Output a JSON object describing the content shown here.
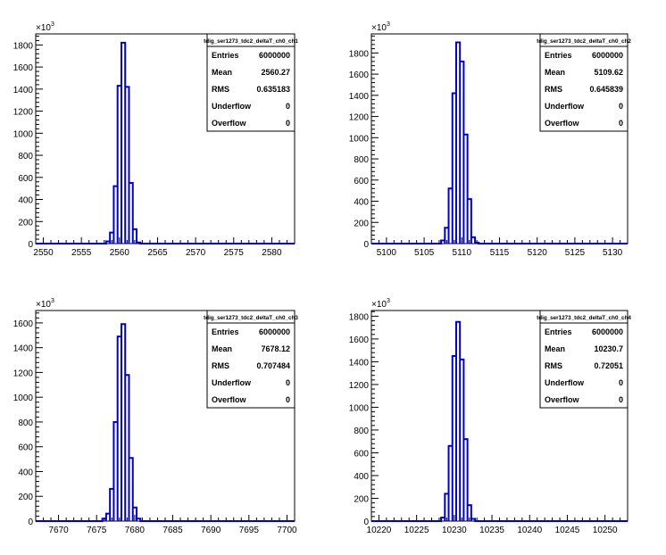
{
  "chart_data": [
    {
      "type": "histogram",
      "title": "tdig_ser1273_tdc2_deltaT_ch0_ch1",
      "y_exponent": "3",
      "xlim": [
        2549,
        2583
      ],
      "ylim": [
        0,
        1.9
      ],
      "xticks": [
        2550,
        2555,
        2560,
        2565,
        2570,
        2575,
        2580
      ],
      "yticks": [
        0,
        200,
        400,
        600,
        800,
        1000,
        1200,
        1400,
        1600,
        1800
      ],
      "bins": [
        {
          "x": 2558.5,
          "y": 0.02
        },
        {
          "x": 2559.0,
          "y": 0.1
        },
        {
          "x": 2559.5,
          "y": 0.52
        },
        {
          "x": 2560.0,
          "y": 1.43
        },
        {
          "x": 2560.5,
          "y": 1.82
        },
        {
          "x": 2561.0,
          "y": 1.42
        },
        {
          "x": 2561.5,
          "y": 0.55
        },
        {
          "x": 2562.0,
          "y": 0.13
        },
        {
          "x": 2562.5,
          "y": 0.01
        }
      ],
      "stats": [
        {
          "label": "Entries",
          "value": "6000000"
        },
        {
          "label": "Mean",
          "value": "2560.27"
        },
        {
          "label": "RMS",
          "value": "0.635183"
        },
        {
          "label": "Underflow",
          "value": "0"
        },
        {
          "label": "Overflow",
          "value": "0"
        }
      ]
    },
    {
      "type": "histogram",
      "title": "tdig_ser1273_tdc2_deltaT_ch0_ch2",
      "y_exponent": "3",
      "xlim": [
        5098,
        5132
      ],
      "ylim": [
        0,
        1.98
      ],
      "xticks": [
        5100,
        5105,
        5110,
        5115,
        5120,
        5125,
        5130
      ],
      "yticks": [
        0,
        200,
        400,
        600,
        800,
        1000,
        1200,
        1400,
        1600,
        1800
      ],
      "bins": [
        {
          "x": 5107.5,
          "y": 0.03
        },
        {
          "x": 5108.0,
          "y": 0.15
        },
        {
          "x": 5108.5,
          "y": 0.52
        },
        {
          "x": 5109.0,
          "y": 1.42
        },
        {
          "x": 5109.5,
          "y": 1.9
        },
        {
          "x": 5110.0,
          "y": 1.72
        },
        {
          "x": 5110.5,
          "y": 1.03
        },
        {
          "x": 5111.0,
          "y": 0.42
        },
        {
          "x": 5111.5,
          "y": 0.06
        },
        {
          "x": 5112.0,
          "y": 0.01
        }
      ],
      "stats": [
        {
          "label": "Entries",
          "value": "6000000"
        },
        {
          "label": "Mean",
          "value": "5109.62"
        },
        {
          "label": "RMS",
          "value": "0.645839"
        },
        {
          "label": "Underflow",
          "value": "0"
        },
        {
          "label": "Overflow",
          "value": "0"
        }
      ]
    },
    {
      "type": "histogram",
      "title": "tdig_ser1273_tdc2_deltaT_ch0_ch3",
      "y_exponent": "3",
      "xlim": [
        7667,
        7701
      ],
      "ylim": [
        0,
        1.7
      ],
      "xticks": [
        7670,
        7675,
        7680,
        7685,
        7690,
        7695,
        7700
      ],
      "yticks": [
        0,
        200,
        400,
        600,
        800,
        1000,
        1200,
        1400,
        1600
      ],
      "bins": [
        {
          "x": 7676.0,
          "y": 0.02
        },
        {
          "x": 7676.5,
          "y": 0.06
        },
        {
          "x": 7677.0,
          "y": 0.26
        },
        {
          "x": 7677.5,
          "y": 0.8
        },
        {
          "x": 7678.0,
          "y": 1.49
        },
        {
          "x": 7678.5,
          "y": 1.59
        },
        {
          "x": 7679.0,
          "y": 1.18
        },
        {
          "x": 7679.5,
          "y": 0.51
        },
        {
          "x": 7680.0,
          "y": 0.11
        },
        {
          "x": 7680.5,
          "y": 0.02
        }
      ],
      "stats": [
        {
          "label": "Entries",
          "value": "6000000"
        },
        {
          "label": "Mean",
          "value": "7678.12"
        },
        {
          "label": "RMS",
          "value": "0.707484"
        },
        {
          "label": "Underflow",
          "value": "0"
        },
        {
          "label": "Overflow",
          "value": "0"
        }
      ]
    },
    {
      "type": "histogram",
      "title": "tdig_ser1273_tdc2_deltaT_ch0_ch4",
      "y_exponent": "3",
      "xlim": [
        10219,
        10253
      ],
      "ylim": [
        0,
        1.85
      ],
      "xticks": [
        10220,
        10225,
        10230,
        10235,
        10240,
        10245,
        10250
      ],
      "yticks": [
        0,
        200,
        400,
        600,
        800,
        1000,
        1200,
        1400,
        1600,
        1800
      ],
      "bins": [
        {
          "x": 10228.5,
          "y": 0.03
        },
        {
          "x": 10229.0,
          "y": 0.24
        },
        {
          "x": 10229.5,
          "y": 0.66
        },
        {
          "x": 10230.0,
          "y": 1.45
        },
        {
          "x": 10230.5,
          "y": 1.75
        },
        {
          "x": 10231.0,
          "y": 1.42
        },
        {
          "x": 10231.5,
          "y": 0.72
        },
        {
          "x": 10232.0,
          "y": 0.14
        },
        {
          "x": 10232.5,
          "y": 0.02
        }
      ],
      "stats": [
        {
          "label": "Entries",
          "value": "6000000"
        },
        {
          "label": "Mean",
          "value": "10230.7"
        },
        {
          "label": "RMS",
          "value": "0.72051"
        },
        {
          "label": "Underflow",
          "value": "0"
        },
        {
          "label": "Overflow",
          "value": "0"
        }
      ]
    }
  ],
  "colors": {
    "histogram_line": "#0000cc",
    "axis": "#000000",
    "background": "#ffffff"
  }
}
